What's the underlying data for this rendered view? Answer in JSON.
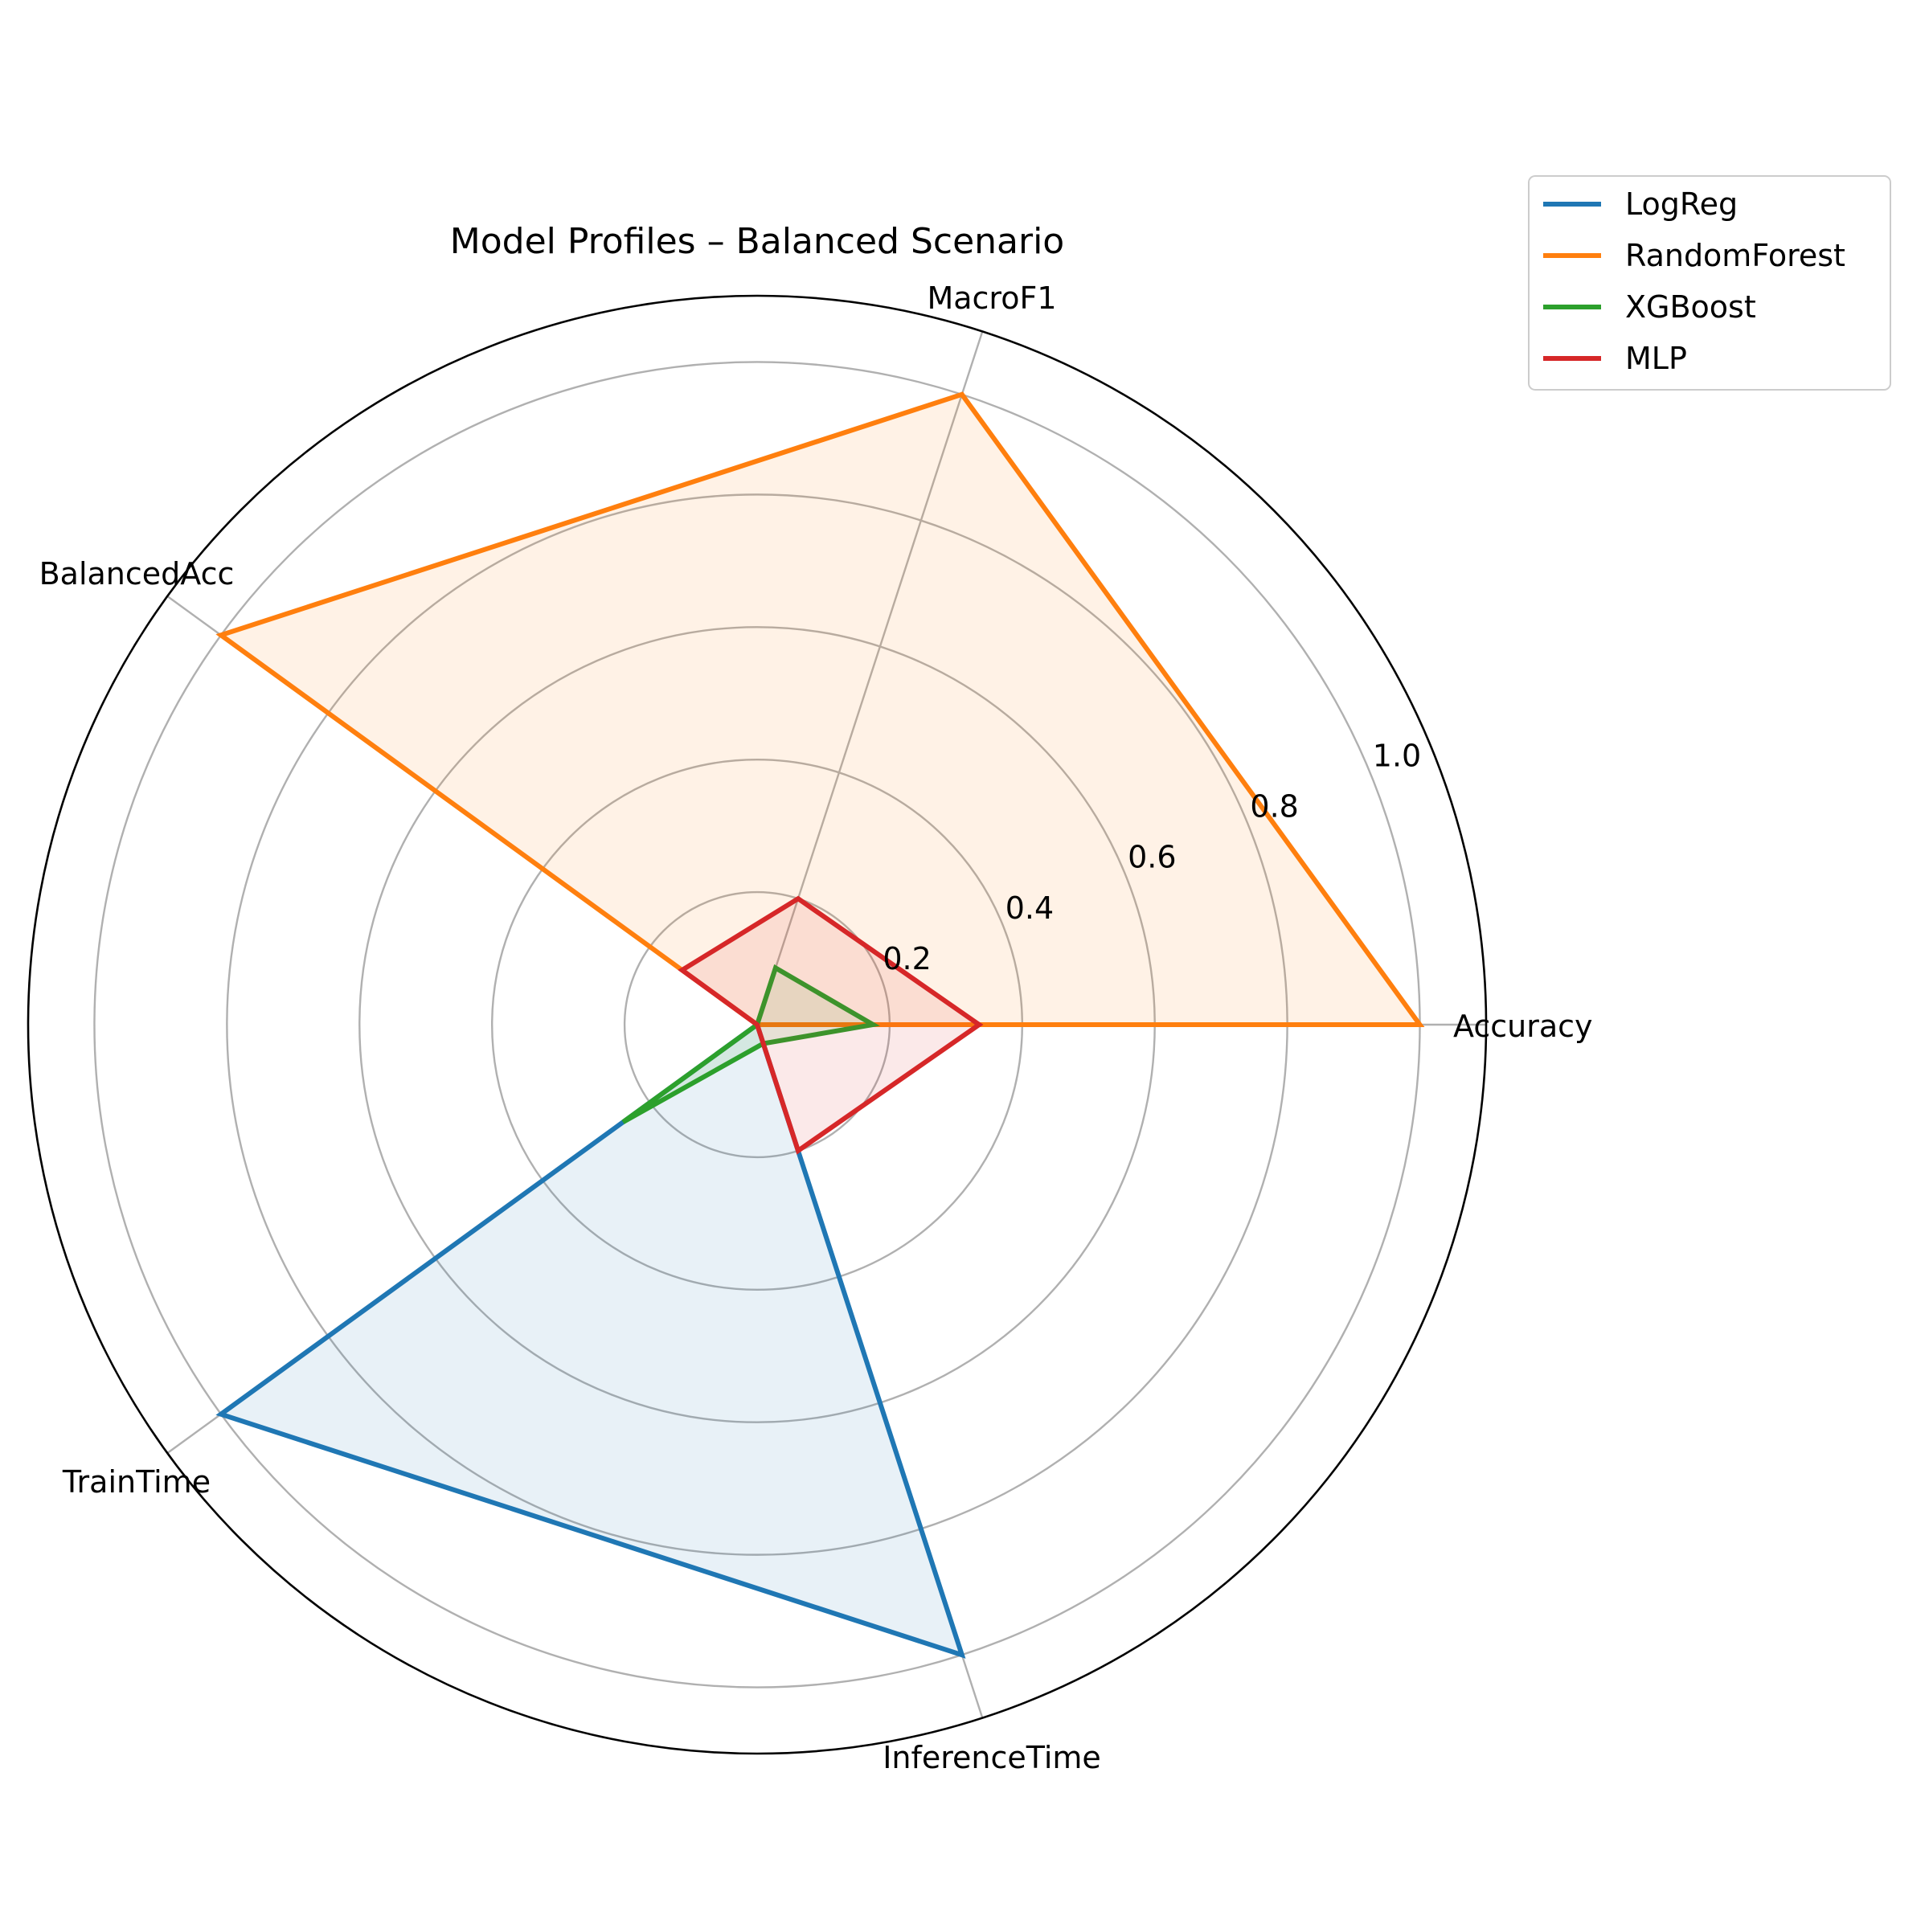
{
  "chart_data": {
    "type": "radar",
    "title": "Model Profiles – Balanced Scenario",
    "axes": [
      "Accuracy",
      "MacroF1",
      "BalancedAcc",
      "TrainTime",
      "InferenceTime"
    ],
    "rlim": [
      0,
      1.1
    ],
    "radial_ticks": [
      0.2,
      0.4,
      0.6,
      0.8,
      1.0
    ],
    "radial_tick_labels": [
      "0.2",
      "0.4",
      "0.6",
      "0.8",
      "1.0"
    ],
    "grid": true,
    "legend_position": "top-right outside",
    "series": [
      {
        "name": "LogReg",
        "color": "#1f77b4",
        "values": [
          0.0,
          0.0,
          0.0,
          1.0,
          1.0
        ]
      },
      {
        "name": "RandomForest",
        "color": "#ff7f0e",
        "values": [
          1.0,
          1.0,
          1.0,
          0.0,
          0.0
        ]
      },
      {
        "name": "XGBoost",
        "color": "#2ca02c",
        "values": [
          0.175,
          0.09,
          0.0,
          0.25,
          0.03
        ]
      },
      {
        "name": "MLP",
        "color": "#d62728",
        "values": [
          0.335,
          0.2,
          0.14,
          0.0,
          0.2
        ]
      }
    ]
  }
}
